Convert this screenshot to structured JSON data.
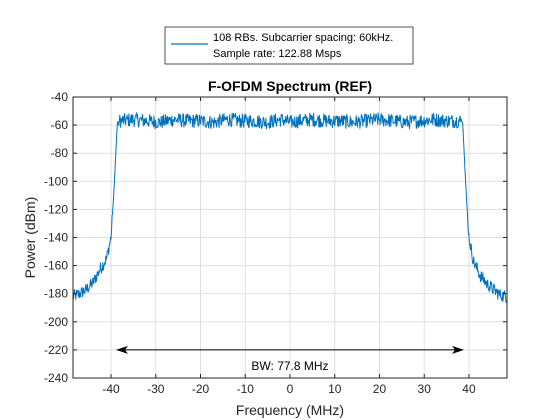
{
  "chart_data": {
    "type": "line",
    "title": "F-OFDM Spectrum (REF)",
    "xlabel": "Frequency (MHz)",
    "ylabel": "Power (dBm)",
    "xlim": [
      -48.5,
      48.5
    ],
    "ylim": [
      -240,
      -40
    ],
    "xticks": [
      -40,
      -30,
      -20,
      -10,
      0,
      10,
      20,
      30,
      40
    ],
    "yticks": [
      -40,
      -60,
      -80,
      -100,
      -120,
      -140,
      -160,
      -180,
      -200,
      -220,
      -240
    ],
    "xtick_labels": [
      "-40",
      "-30",
      "-20",
      "-10",
      "0",
      "10",
      "20",
      "30",
      "40"
    ],
    "ytick_labels": [
      "-40",
      "-60",
      "-80",
      "-100",
      "-120",
      "-140",
      "-160",
      "-180",
      "-200",
      "-220",
      "-240"
    ],
    "grid": true,
    "legend_position": "top-center",
    "legend_lines": [
      "108 RBs. Subcarrier spacing: 60kHz.",
      "Sample rate: 122.88 Msps"
    ],
    "series": [
      {
        "color": "#0072BD",
        "x": [
          -48.5,
          -47,
          -45.5,
          -44,
          -42.5,
          -41,
          -40,
          -39.5,
          -39,
          -38.6,
          -38,
          -35,
          -32,
          -29,
          -26,
          -23,
          -20,
          -17,
          -14,
          -11,
          -8,
          -5,
          -2,
          0,
          2,
          5,
          8,
          11,
          14,
          17,
          20,
          23,
          26,
          29,
          32,
          35,
          38,
          38.6,
          39,
          39.5,
          40,
          41,
          42.5,
          44,
          45.5,
          47,
          48.5
        ],
        "y": [
          -182,
          -180,
          -177,
          -172,
          -163,
          -155,
          -140,
          -115,
          -85,
          -58,
          -57,
          -56,
          -57,
          -58,
          -56,
          -57,
          -57,
          -58,
          -56,
          -57,
          -57,
          -58,
          -56,
          -58,
          -57,
          -56,
          -57,
          -57,
          -58,
          -57,
          -56,
          -57,
          -58,
          -57,
          -56,
          -57,
          -57,
          -58,
          -85,
          -115,
          -140,
          -157,
          -167,
          -173,
          -177,
          -181,
          -182
        ]
      }
    ],
    "annotations": [
      {
        "type": "double-arrow",
        "x_start": -38.9,
        "x_end": 38.9,
        "y": -220,
        "label": "BW: 77.8 MHz"
      }
    ]
  }
}
